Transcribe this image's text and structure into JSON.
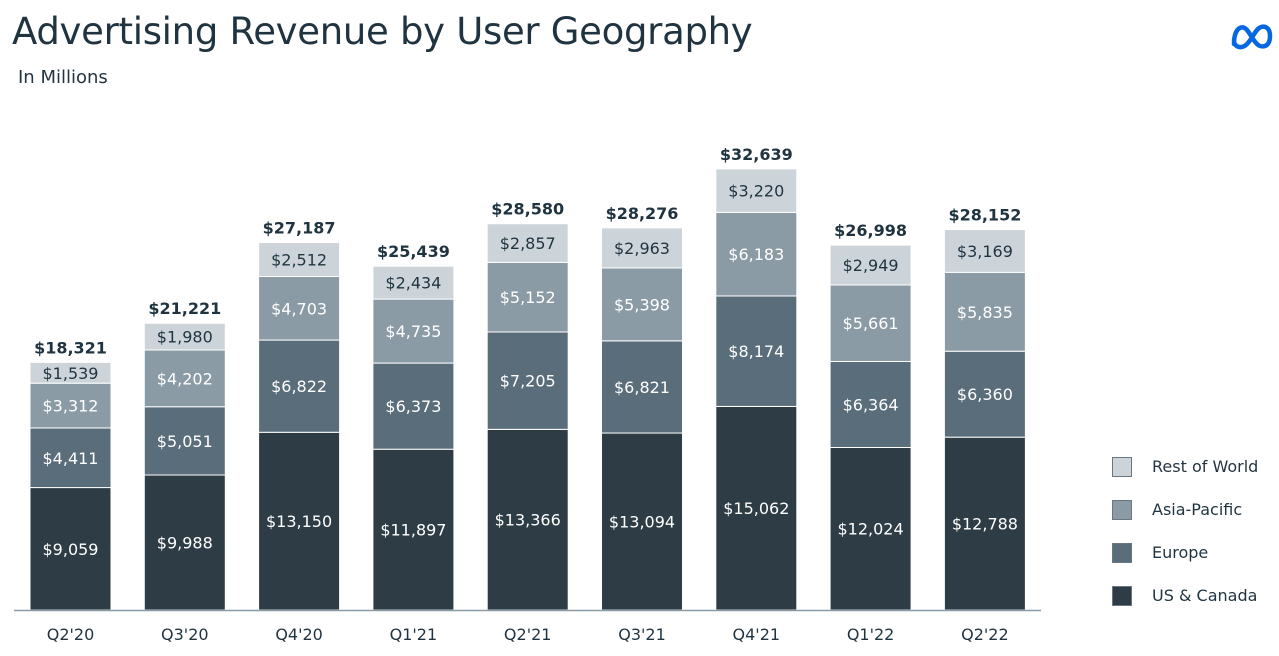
{
  "header": {
    "title": "Advertising Revenue by User Geography",
    "subtitle": "In Millions",
    "logo_icon": "meta-infinity-icon"
  },
  "colors": {
    "us_canada": "#2d3c45",
    "europe": "#5a6d7a",
    "asia_pacific": "#8b9ba5",
    "rest_of_world": "#cdd4d9",
    "text_dark": "#1f3440",
    "logo_blue": "#0668e1"
  },
  "chart_data": {
    "type": "bar",
    "stacked": true,
    "title": "Advertising Revenue by User Geography",
    "subtitle": "In Millions",
    "xlabel": "",
    "ylabel": "",
    "ylim": [
      0,
      33000
    ],
    "grid": false,
    "legend_position": "right",
    "categories": [
      "Q2'20",
      "Q3'20",
      "Q4'20",
      "Q1'21",
      "Q2'21",
      "Q3'21",
      "Q4'21",
      "Q1'22",
      "Q2'22"
    ],
    "series": [
      {
        "name": "US & Canada",
        "values": [
          9059,
          9988,
          13150,
          11897,
          13366,
          13094,
          15062,
          12024,
          12788
        ],
        "labels": [
          "$9,059",
          "$9,988",
          "$13,150",
          "$11,897",
          "$13,366",
          "$13,094",
          "$15,062",
          "$12,024",
          "$12,788"
        ]
      },
      {
        "name": "Europe",
        "values": [
          4411,
          5051,
          6822,
          6373,
          7205,
          6821,
          8174,
          6364,
          6360
        ],
        "labels": [
          "$4,411",
          "$5,051",
          "$6,822",
          "$6,373",
          "$7,205",
          "$6,821",
          "$8,174",
          "$6,364",
          "$6,360"
        ]
      },
      {
        "name": "Asia-Pacific",
        "values": [
          3312,
          4202,
          4703,
          4735,
          5152,
          5398,
          6183,
          5661,
          5835
        ],
        "labels": [
          "$3,312",
          "$4,202",
          "$4,703",
          "$4,735",
          "$5,152",
          "$5,398",
          "$6,183",
          "$5,661",
          "$5,835"
        ]
      },
      {
        "name": "Rest of World",
        "values": [
          1539,
          1980,
          2512,
          2434,
          2857,
          2963,
          3220,
          2949,
          3169
        ],
        "labels": [
          "$1,539",
          "$1,980",
          "$2,512",
          "$2,434",
          "$2,857",
          "$2,963",
          "$3,220",
          "$2,949",
          "$3,169"
        ]
      }
    ],
    "totals": [
      18321,
      21221,
      27187,
      25439,
      28580,
      28276,
      32639,
      26998,
      28152
    ],
    "total_labels": [
      "$18,321",
      "$21,221",
      "$27,187",
      "$25,439",
      "$28,580",
      "$28,276",
      "$32,639",
      "$26,998",
      "$28,152"
    ]
  },
  "legend": {
    "items": [
      {
        "label": "Rest of World"
      },
      {
        "label": "Asia-Pacific"
      },
      {
        "label": "Europe"
      },
      {
        "label": "US & Canada"
      }
    ]
  }
}
